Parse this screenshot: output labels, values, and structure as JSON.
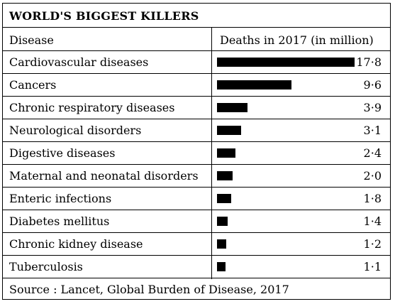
{
  "chart_data": {
    "type": "bar",
    "title": "WORLD'S BIGGEST KILLERS",
    "column_headers": [
      "Disease",
      "Deaths in 2017 (in million)"
    ],
    "categories": [
      "Cardiovascular diseases",
      "Cancers",
      "Chronic respiratory diseases",
      "Neurological disorders",
      "Digestive diseases",
      "Maternal and neonatal disorders",
      "Enteric infections",
      "Diabetes mellitus",
      "Chronic kidney disease",
      "Tuberculosis"
    ],
    "values": [
      17.8,
      9.6,
      3.9,
      3.1,
      2.4,
      2.0,
      1.8,
      1.4,
      1.2,
      1.1
    ],
    "value_labels": [
      "17·8",
      "9·6",
      "3·9",
      "3·1",
      "2·4",
      "2·0",
      "1·8",
      "1·4",
      "1·2",
      "1·1"
    ],
    "source": "Source : Lancet, Global Burden of Disease, 2017",
    "bar_color": "#000000",
    "grid": false,
    "legend": "none"
  }
}
